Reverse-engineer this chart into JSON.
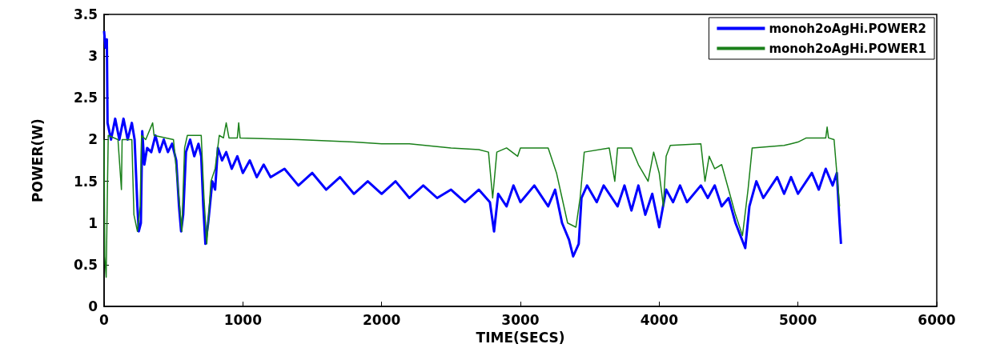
{
  "chart_data": {
    "type": "line",
    "xlabel": "TIME(SECS)",
    "ylabel": "POWER(W)",
    "xlim": [
      0,
      6000
    ],
    "xticks": [
      0,
      1000,
      2000,
      3000,
      4000,
      5000,
      6000
    ],
    "ylim": [
      0,
      3.5
    ],
    "yticks": [
      0,
      0.5,
      1,
      1.5,
      2,
      2.5,
      3,
      3.5
    ],
    "grid": false,
    "legend": "top right",
    "marker": "none",
    "line_style": "solid",
    "series": [
      {
        "name": "monoh2oAgHi.POWER2",
        "color": "#0000ff",
        "x": [
          0,
          10,
          20,
          25,
          50,
          80,
          110,
          140,
          170,
          200,
          220,
          240,
          250,
          265,
          275,
          290,
          310,
          340,
          370,
          400,
          430,
          460,
          490,
          520,
          540,
          555,
          570,
          590,
          620,
          650,
          680,
          700,
          715,
          730,
          750,
          780,
          800,
          820,
          850,
          880,
          920,
          960,
          1000,
          1050,
          1100,
          1150,
          1200,
          1300,
          1400,
          1500,
          1600,
          1700,
          1800,
          1900,
          2000,
          2100,
          2200,
          2300,
          2400,
          2500,
          2600,
          2700,
          2780,
          2810,
          2840,
          2900,
          2950,
          3000,
          3100,
          3200,
          3250,
          3300,
          3350,
          3380,
          3420,
          3440,
          3480,
          3550,
          3600,
          3700,
          3750,
          3800,
          3850,
          3900,
          3950,
          4000,
          4050,
          4100,
          4150,
          4200,
          4300,
          4350,
          4400,
          4450,
          4500,
          4550,
          4620,
          4650,
          4700,
          4750,
          4850,
          4900,
          4950,
          5000,
          5100,
          5150,
          5200,
          5250,
          5280,
          5300,
          5310
        ],
        "values": [
          3.3,
          3.1,
          3.2,
          2.2,
          2.0,
          2.25,
          2.0,
          2.25,
          2.0,
          2.2,
          2.0,
          1.2,
          0.9,
          1.0,
          2.1,
          1.7,
          1.9,
          1.85,
          2.05,
          1.85,
          2.0,
          1.85,
          1.95,
          1.75,
          1.2,
          0.9,
          1.1,
          1.85,
          2.0,
          1.8,
          1.95,
          1.8,
          1.2,
          0.75,
          1.0,
          1.5,
          1.4,
          1.9,
          1.75,
          1.85,
          1.65,
          1.8,
          1.6,
          1.75,
          1.55,
          1.7,
          1.55,
          1.65,
          1.45,
          1.6,
          1.4,
          1.55,
          1.35,
          1.5,
          1.35,
          1.5,
          1.3,
          1.45,
          1.3,
          1.4,
          1.25,
          1.4,
          1.25,
          0.9,
          1.35,
          1.2,
          1.45,
          1.25,
          1.45,
          1.2,
          1.4,
          1.0,
          0.8,
          0.6,
          0.75,
          1.3,
          1.45,
          1.25,
          1.45,
          1.2,
          1.45,
          1.15,
          1.45,
          1.1,
          1.35,
          0.95,
          1.4,
          1.25,
          1.45,
          1.25,
          1.45,
          1.3,
          1.45,
          1.2,
          1.3,
          1.0,
          0.7,
          1.2,
          1.5,
          1.3,
          1.55,
          1.35,
          1.55,
          1.35,
          1.6,
          1.4,
          1.65,
          1.45,
          1.6,
          1.0,
          0.75
        ]
      },
      {
        "name": "monoh2oAgHi.POWER1",
        "color": "#1a801a",
        "x": [
          0,
          5,
          15,
          25,
          30,
          100,
          125,
          130,
          200,
          215,
          240,
          260,
          270,
          300,
          350,
          360,
          500,
          540,
          560,
          580,
          600,
          700,
          720,
          740,
          770,
          800,
          830,
          860,
          880,
          900,
          960,
          970,
          980,
          1400,
          1800,
          2000,
          2200,
          2500,
          2700,
          2770,
          2800,
          2830,
          2900,
          2980,
          3000,
          3200,
          3260,
          3300,
          3340,
          3400,
          3430,
          3460,
          3640,
          3680,
          3700,
          3800,
          3850,
          3920,
          3960,
          4000,
          4030,
          4050,
          4080,
          4300,
          4330,
          4360,
          4400,
          4450,
          4500,
          4550,
          4600,
          4640,
          4670,
          4900,
          4950,
          5000,
          5060,
          5200,
          5210,
          5220,
          5260,
          5280,
          5300
        ],
        "values": [
          2.0,
          0.6,
          0.35,
          1.5,
          2.05,
          2.0,
          1.4,
          2.0,
          2.0,
          1.1,
          0.9,
          1.2,
          2.05,
          2.0,
          2.2,
          2.05,
          2.0,
          1.3,
          0.9,
          1.9,
          2.05,
          2.05,
          1.3,
          0.75,
          1.5,
          1.65,
          2.05,
          2.02,
          2.2,
          2.02,
          2.02,
          2.2,
          2.02,
          2.0,
          1.97,
          1.95,
          1.95,
          1.9,
          1.88,
          1.85,
          1.3,
          1.85,
          1.9,
          1.8,
          1.9,
          1.9,
          1.6,
          1.3,
          1.0,
          0.95,
          1.3,
          1.85,
          1.9,
          1.5,
          1.9,
          1.9,
          1.7,
          1.5,
          1.85,
          1.6,
          1.2,
          1.8,
          1.93,
          1.95,
          1.5,
          1.8,
          1.65,
          1.7,
          1.4,
          1.1,
          0.85,
          1.4,
          1.9,
          1.93,
          1.95,
          1.97,
          2.02,
          2.02,
          2.15,
          2.02,
          2.0,
          1.6,
          1.2
        ]
      }
    ]
  }
}
